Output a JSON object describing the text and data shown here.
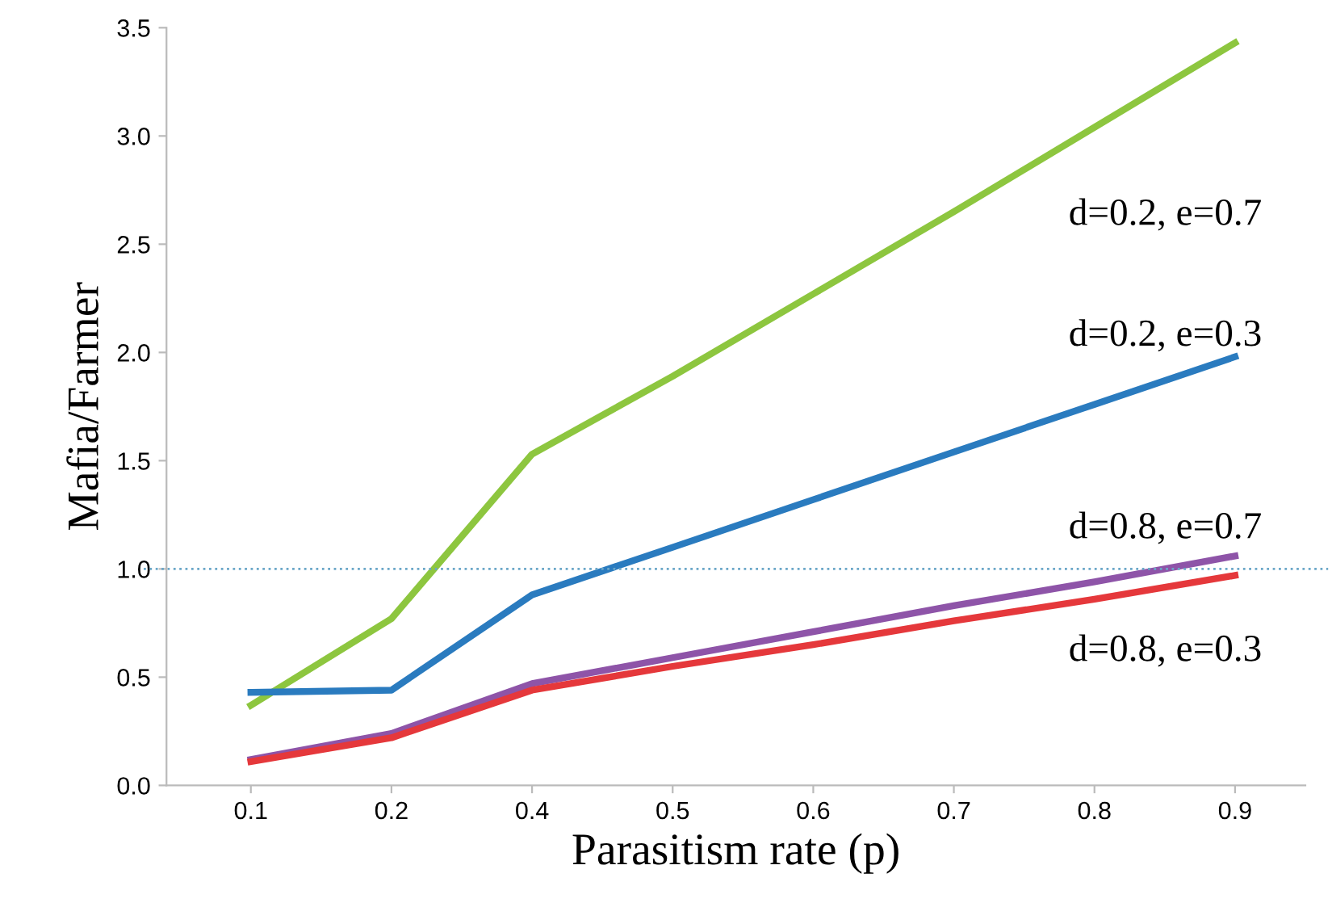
{
  "chart_data": {
    "type": "line",
    "xlabel": "Parasitism rate (p)",
    "ylabel": "Mafia/Farmer",
    "categories": [
      "0.1",
      "0.2",
      "0.4",
      "0.5",
      "0.6",
      "0.7",
      "0.8",
      "0.9"
    ],
    "series": [
      {
        "name": "d=0.2, e=0.7",
        "color": "#8dc63f",
        "values": [
          0.37,
          0.77,
          1.53,
          1.89,
          2.27,
          2.65,
          3.04,
          3.43
        ]
      },
      {
        "name": "d=0.2, e=0.3",
        "color": "#2a7bbf",
        "values": [
          0.43,
          0.44,
          0.88,
          1.1,
          1.32,
          1.54,
          1.76,
          1.98
        ]
      },
      {
        "name": "d=0.8, e=0.7",
        "color": "#8e54a8",
        "values": [
          0.12,
          0.24,
          0.47,
          0.59,
          0.71,
          0.83,
          0.94,
          1.06
        ]
      },
      {
        "name": "d=0.8, e=0.3",
        "color": "#e5383b",
        "values": [
          0.11,
          0.22,
          0.44,
          0.55,
          0.65,
          0.76,
          0.86,
          0.97
        ]
      }
    ],
    "ylim": [
      0,
      3.5
    ],
    "yticks": [
      {
        "value": 0,
        "label": "0.0"
      },
      0.5,
      {
        "value": 1,
        "label": "1.0"
      },
      1.5,
      {
        "value": 2,
        "label": "2.0"
      },
      2.5,
      {
        "value": 3,
        "label": "3.0"
      },
      3.5
    ],
    "ref_lines": [
      {
        "axis": "y",
        "value": 1.0,
        "color": "#6aa6c8",
        "line_style": "dotted"
      }
    ],
    "grid": false,
    "legend": false,
    "marker": "none",
    "line_style": "solid"
  }
}
